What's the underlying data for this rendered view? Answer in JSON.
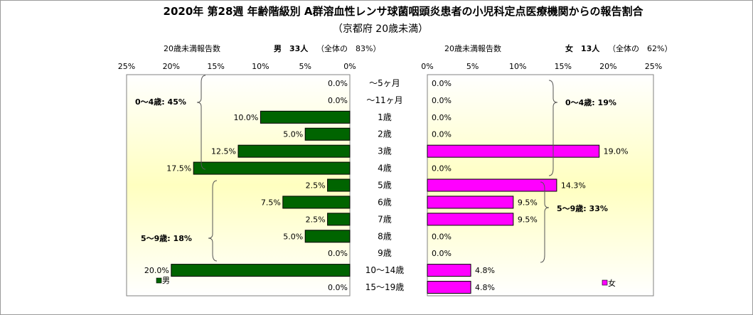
{
  "chart_data": {
    "type": "bar",
    "orientation": "horizontal-butterfly",
    "title": "2020年 第28週 年齢階級別 A群溶血性レンサ球菌咽頭炎患者の小児科定点医療機関からの報告割合",
    "subtitle": "（京都府 20歳未満）",
    "categories": [
      "～5ヶ月",
      "～11ヶ月",
      "1歳",
      "2歳",
      "3歳",
      "4歳",
      "5歳",
      "6歳",
      "7歳",
      "8歳",
      "9歳",
      "10～14歳",
      "15～19歳"
    ],
    "xlim": [
      0,
      25
    ],
    "xticks": [
      "25%",
      "20%",
      "15%",
      "10%",
      "5%",
      "0%"
    ],
    "xticks_right": [
      "0%",
      "5%",
      "10%",
      "15%",
      "20%",
      "25%"
    ],
    "series": [
      {
        "name": "男",
        "color": "#006400",
        "header_label": "20歳未満報告数",
        "header_count": "男　33人",
        "header_share": "（全体の　83%）",
        "values": [
          0.0,
          0.0,
          10.0,
          5.0,
          12.5,
          17.5,
          2.5,
          7.5,
          2.5,
          5.0,
          0.0,
          20.0,
          0.0
        ],
        "value_labels": [
          "0.0%",
          "0.0%",
          "10.0%",
          "5.0%",
          "12.5%",
          "17.5%",
          "2.5%",
          "7.5%",
          "2.5%",
          "5.0%",
          "0.0%",
          "20.0%",
          "0.0%"
        ],
        "group_labels": [
          "0～4歳: 45%",
          "5～9歳: 18%"
        ]
      },
      {
        "name": "女",
        "color": "#ff00ff",
        "header_label": "20歳未満報告数",
        "header_count": "女　13人",
        "header_share": "（全体の　62%）",
        "values": [
          0.0,
          0.0,
          0.0,
          0.0,
          19.0,
          0.0,
          14.3,
          9.5,
          9.5,
          0.0,
          0.0,
          4.8,
          4.8
        ],
        "value_labels": [
          "0.0%",
          "0.0%",
          "0.0%",
          "0.0%",
          "19.0%",
          "0.0%",
          "14.3%",
          "9.5%",
          "9.5%",
          "0.0%",
          "0.0%",
          "4.8%",
          "4.8%"
        ],
        "group_labels": [
          "0～4歳: 19%",
          "5～9歳: 33%"
        ]
      }
    ],
    "grid": false
  }
}
